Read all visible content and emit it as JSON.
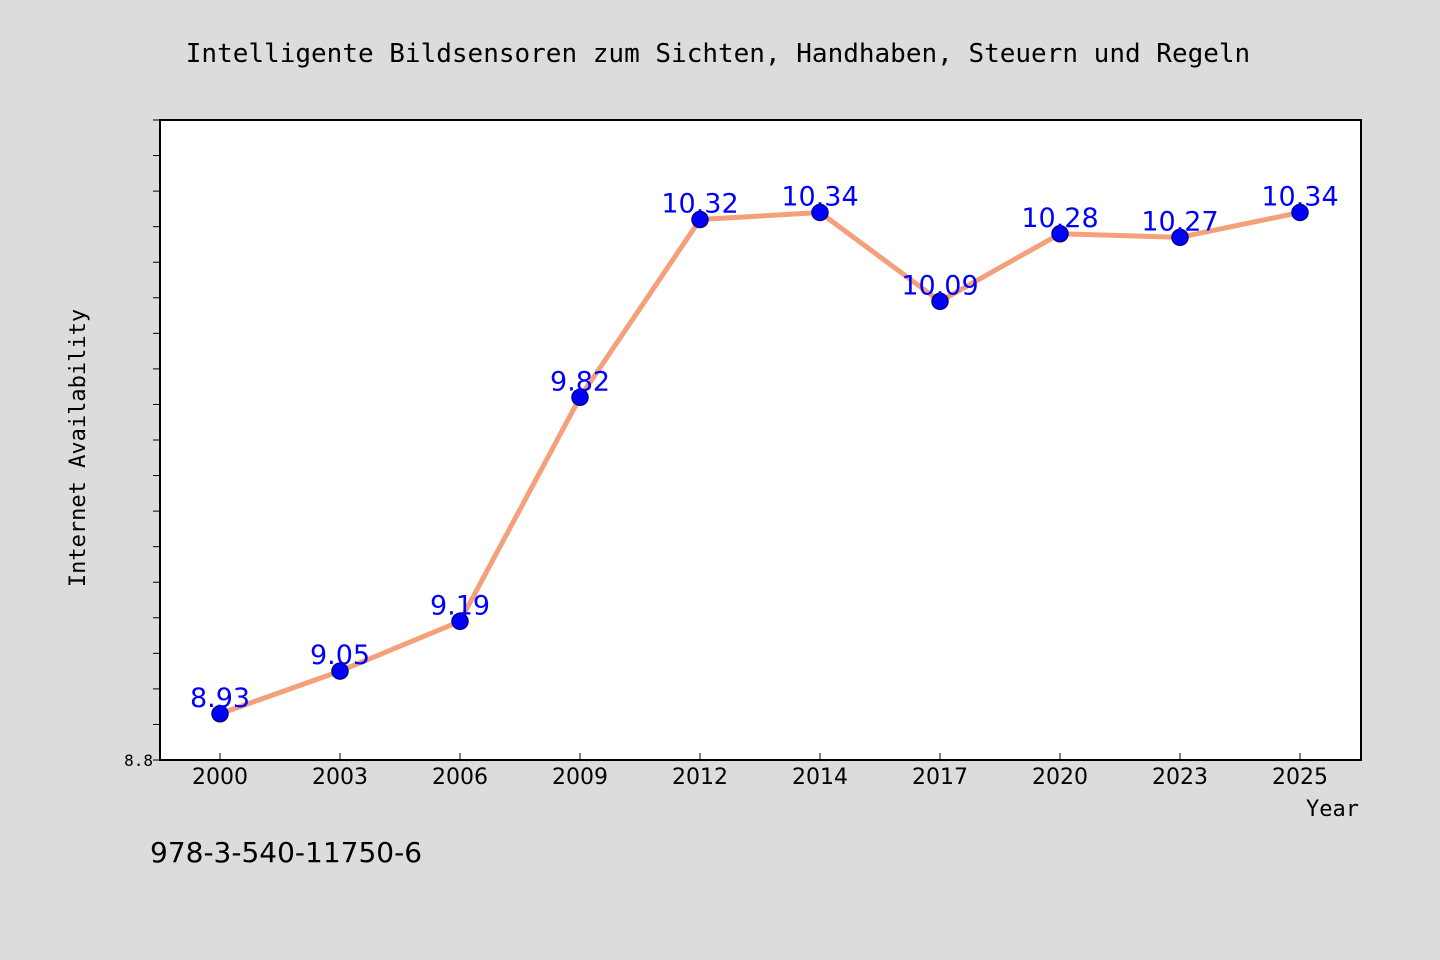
{
  "chart_data": {
    "type": "line",
    "title": "Intelligente Bildsensoren zum Sichten, Handhaben, Steuern und Regeln",
    "xlabel": "Year",
    "ylabel": "Internet Availability",
    "categories": [
      "2000",
      "2003",
      "2006",
      "2009",
      "2012",
      "2014",
      "2017",
      "2020",
      "2023",
      "2025"
    ],
    "series": [
      {
        "values": [
          8.93,
          9.05,
          9.19,
          9.82,
          10.32,
          10.34,
          10.09,
          10.28,
          10.27,
          10.34
        ],
        "data_labels": [
          "8.93",
          "9.05",
          "9.19",
          "9.82",
          "10.32",
          "10.34",
          "10.09",
          "10.28",
          "10.27",
          "10.34"
        ]
      }
    ],
    "ylim": [
      8.8,
      10.6
    ],
    "ytick_labels": [
      {
        "value": 8.8,
        "label": "8.8"
      }
    ],
    "minor_tick_step": 0.1,
    "grid": false,
    "colors": {
      "line": "#f4a07a",
      "marker": "#0000ff",
      "marker_edge": "#00008b",
      "data_label": "#0000ff",
      "plot_background": "#ffffff",
      "figure_background": "#dcdcdc"
    }
  },
  "footer": {
    "isbn": "978-3-540-11750-6"
  }
}
